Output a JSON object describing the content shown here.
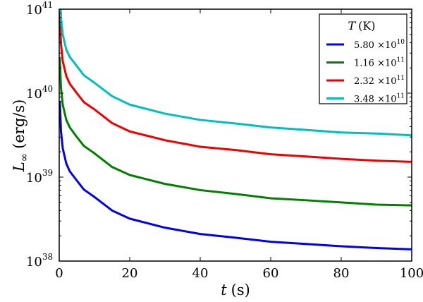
{
  "chart_data": {
    "type": "line",
    "title": "",
    "xlabel_var": "t",
    "xlabel_unit": "(s)",
    "ylabel_var": "L",
    "ylabel_sub": "∞",
    "ylabel_unit": "(erg/s)",
    "xlim": [
      0,
      100
    ],
    "ylim": [
      1e+38,
      1e+41
    ],
    "yscale": "log",
    "xticks": [
      0,
      20,
      40,
      60,
      80,
      100
    ],
    "yticks": [
      {
        "base": "10",
        "exp": "38",
        "value": 1e+38
      },
      {
        "base": "10",
        "exp": "39",
        "value": 1e+39
      },
      {
        "base": "10",
        "exp": "40",
        "value": 1e+40
      },
      {
        "base": "10",
        "exp": "41",
        "value": 1e+41
      }
    ],
    "grid": false,
    "legend": {
      "placement": "top-right",
      "title_var": "T",
      "title_unit": "(K)"
    },
    "x": [
      0.15,
      0.5,
      1,
      2,
      3,
      5,
      7,
      10,
      15,
      20,
      30,
      40,
      50,
      60,
      70,
      80,
      90,
      100
    ],
    "series": [
      {
        "name": "5.80 ×10^10",
        "mant": "5.80 ×10",
        "exp": "10",
        "color": "#0000ee",
        "values": [
          8.1e+39,
          3.5e+39,
          2.2e+39,
          1.45e+39,
          1.17e+39,
          9.1e+38,
          7.1e+38,
          5.8e+38,
          4e+38,
          3.2e+38,
          2.5e+38,
          2.1e+38,
          1.9e+38,
          1.7e+38,
          1.6e+38,
          1.5e+38,
          1.43e+38,
          1.38e+38
        ]
      },
      {
        "name": "1.16 ×10^11",
        "mant": "1.16 ×10",
        "exp": "11",
        "color": "#007f00",
        "values": [
          2.7e+40,
          1.16e+40,
          7.3e+39,
          4.8e+39,
          3.9e+39,
          3e+39,
          2.35e+39,
          1.92e+39,
          1.32e+39,
          1.06e+39,
          8.3e+38,
          7e+38,
          6.3e+38,
          5.6e+38,
          5.3e+38,
          5e+38,
          4.7e+38,
          4.6e+38
        ]
      },
      {
        "name": "2.32 ×10^11",
        "mant": "2.32 ×10",
        "exp": "11",
        "color": "#ee0000",
        "values": [
          8.9e+40,
          3.85e+40,
          2.4e+40,
          1.6e+40,
          1.29e+40,
          1e+40,
          7.8e+39,
          6.4e+39,
          4.4e+39,
          3.5e+39,
          2.75e+39,
          2.3e+39,
          2.1e+39,
          1.87e+39,
          1.76e+39,
          1.65e+39,
          1.57e+39,
          1.52e+39
        ]
      },
      {
        "name": "3.48 ×10^11",
        "mant": "3.48 ×10",
        "exp": "11",
        "color": "#00bfbf",
        "values": [
          1.85e+41,
          8e+40,
          5e+40,
          3.3e+40,
          2.7e+40,
          2.1e+40,
          1.63e+40,
          1.33e+40,
          9.2e+39,
          7.3e+39,
          5.7e+39,
          4.8e+39,
          4.35e+39,
          3.9e+39,
          3.65e+39,
          3.4e+39,
          3.3e+39,
          3.15e+39
        ]
      }
    ]
  }
}
